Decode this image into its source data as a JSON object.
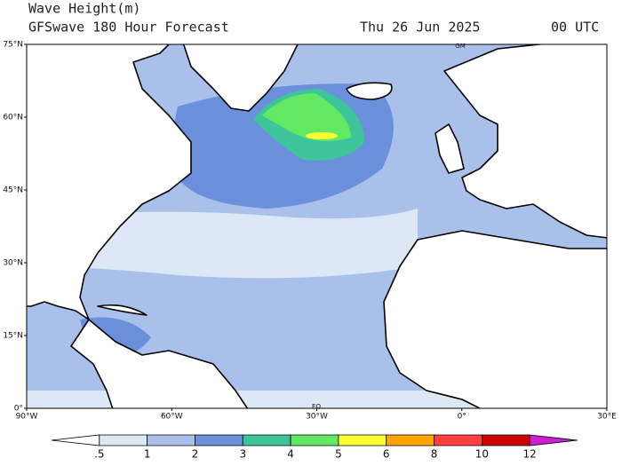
{
  "header": {
    "title": "Wave Height(m)",
    "subtitle": "GFSwave 180 Hour Forecast",
    "date": "Thu 26 Jun 2025",
    "time": "00 UTC"
  },
  "map": {
    "lat_labels": [
      "75°N",
      "60°N",
      "45°N",
      "30°N",
      "15°N",
      "0°"
    ],
    "lon_labels": [
      "90°W",
      "60°W",
      "30°W",
      "0°",
      "30°E"
    ],
    "markers": [
      "GM",
      "EQ"
    ]
  },
  "colorbar": {
    "labels": [
      ".5",
      "1",
      "2",
      "3",
      "4",
      "5",
      "6",
      "8",
      "10",
      "12"
    ],
    "colors": [
      "#ffffff",
      "#dce8f6",
      "#a9c1ea",
      "#6a8fdb",
      "#3dc49b",
      "#63e863",
      "#ffff33",
      "#ffa500",
      "#ff4040",
      "#cc0000",
      "#d21ed2"
    ]
  }
}
